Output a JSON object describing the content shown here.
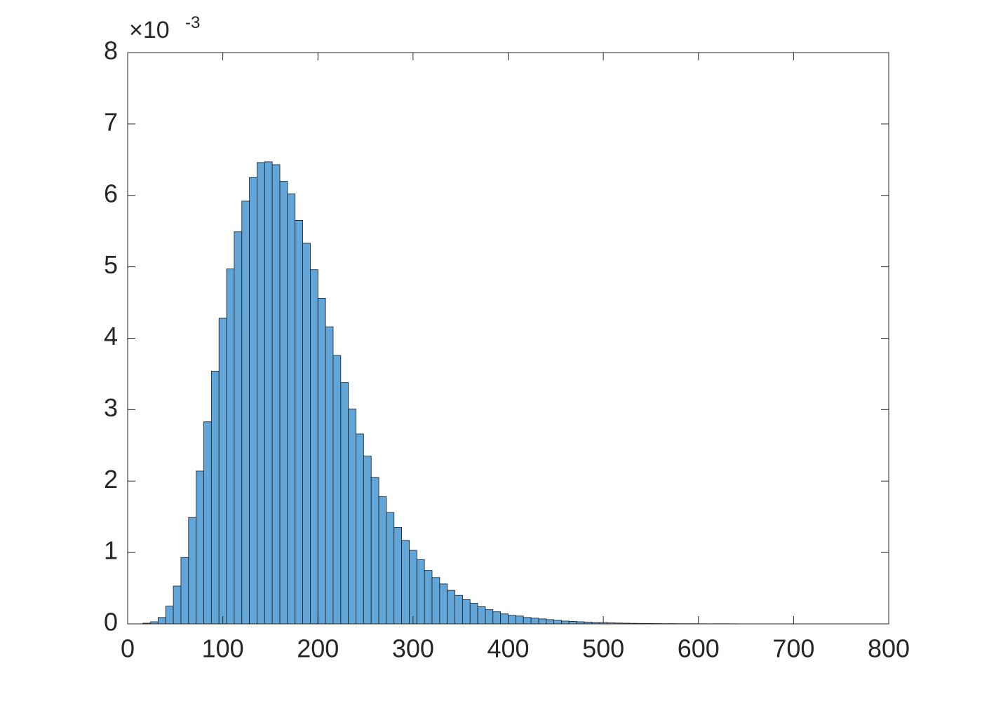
{
  "chart_data": {
    "type": "histogram",
    "bins": [
      16,
      24,
      32,
      40,
      48,
      56,
      64,
      72,
      80,
      88,
      96,
      104,
      112,
      120,
      128,
      136,
      144,
      152,
      160,
      168,
      176,
      184,
      192,
      200,
      208,
      216,
      224,
      232,
      240,
      248,
      256,
      264,
      272,
      280,
      288,
      296,
      304,
      312,
      320,
      328,
      336,
      344,
      352,
      360,
      368,
      376,
      384,
      392,
      400,
      408,
      416,
      424,
      432,
      440,
      448,
      456,
      464,
      472,
      480,
      488,
      496,
      504,
      512,
      520,
      528,
      536,
      544,
      552,
      560,
      568,
      576,
      584,
      592,
      600,
      608,
      616,
      624,
      632,
      640,
      648,
      656,
      664,
      672,
      680,
      688,
      696,
      704,
      712,
      720,
      728,
      736,
      744,
      752,
      760,
      768,
      776,
      784,
      792
    ],
    "values": [
      0.01,
      0.03,
      0.09,
      0.25,
      0.53,
      0.93,
      1.49,
      2.14,
      2.83,
      3.54,
      4.28,
      4.97,
      5.49,
      5.92,
      6.25,
      6.46,
      6.47,
      6.43,
      6.2,
      6.02,
      5.65,
      5.33,
      4.96,
      4.56,
      4.16,
      3.76,
      3.38,
      3.01,
      2.66,
      2.35,
      2.05,
      1.78,
      1.56,
      1.35,
      1.17,
      1.03,
      0.9,
      0.75,
      0.65,
      0.56,
      0.47,
      0.4,
      0.34,
      0.29,
      0.24,
      0.2,
      0.17,
      0.14,
      0.12,
      0.11,
      0.09,
      0.08,
      0.07,
      0.06,
      0.05,
      0.04,
      0.035,
      0.03,
      0.025,
      0.02,
      0.018,
      0.015,
      0.012,
      0.01,
      0.008,
      0.007,
      0.006,
      0.005,
      0.004,
      0.004,
      0.003,
      0.003,
      0.003,
      0.002,
      0.002,
      0.002,
      0.002,
      0.002,
      0.001,
      0.001,
      0.001,
      0.001,
      0.001,
      0.001,
      0.001,
      0.001,
      0.001,
      0.001,
      0.001,
      0.001,
      0.001,
      0,
      0.001,
      0,
      0.001,
      0.001,
      0.001
    ],
    "color": "#62a6d9",
    "edgecolor": "#1a1a1a",
    "xlim": [
      0,
      800
    ],
    "xticks": [
      0,
      100,
      200,
      300,
      400,
      500,
      600,
      700,
      800
    ],
    "ylim": [
      0,
      8
    ],
    "yticks": [
      0,
      1,
      2,
      3,
      4,
      5,
      6,
      7,
      8
    ],
    "y_multiplier": {
      "base": "×10",
      "exponent": "-3"
    },
    "grid": false
  }
}
